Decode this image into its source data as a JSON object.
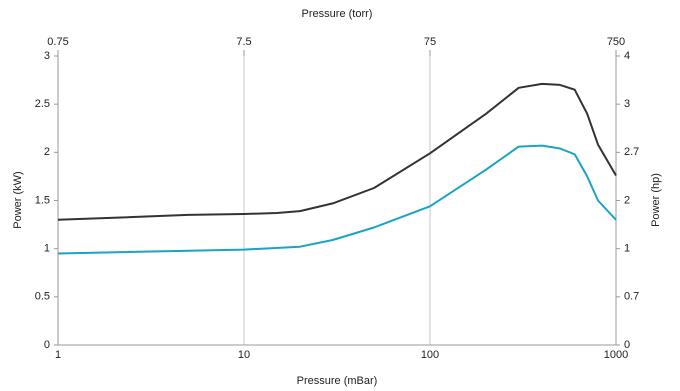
{
  "chart_data": {
    "type": "line",
    "xlabel": "Pressure (mBar)",
    "x2label": "Pressure (torr)",
    "ylabel": "Power (kW)",
    "y2label": "Power (hp)",
    "xscale": "log",
    "xlim": [
      1,
      1000
    ],
    "xticks": [
      1,
      10,
      100,
      1000
    ],
    "x2scale": "log",
    "x2lim": [
      0.75,
      750
    ],
    "x2ticks": [
      0.75,
      7.5,
      75,
      750
    ],
    "ylim": [
      0,
      3
    ],
    "yticks": [
      0,
      0.5,
      1,
      1.5,
      2,
      2.5,
      3
    ],
    "y2lim": [
      0,
      4.02
    ],
    "y2ticks": [
      0,
      {
        "value": 0.67,
        "label": "0.7"
      },
      {
        "value": 1.34,
        "label": "1"
      },
      {
        "value": 2.01,
        "label": "2"
      },
      {
        "value": 2.68,
        "label": "2.7"
      },
      {
        "value": 3.35,
        "label": "3"
      },
      {
        "value": 4.02,
        "label": "4"
      }
    ],
    "grid": "x",
    "series": [
      {
        "color": "#333333",
        "x": [
          1,
          2,
          5,
          10,
          15,
          20,
          30,
          50,
          100,
          200,
          300,
          400,
          500,
          600,
          700,
          800,
          1000
        ],
        "values": [
          1.3,
          1.32,
          1.35,
          1.36,
          1.37,
          1.39,
          1.47,
          1.63,
          1.99,
          2.4,
          2.67,
          2.71,
          2.7,
          2.65,
          2.4,
          2.08,
          1.76
        ]
      },
      {
        "color": "#1aa3c4",
        "x": [
          1,
          10,
          20,
          30,
          50,
          100,
          200,
          300,
          400,
          500,
          600,
          700,
          800,
          1000
        ],
        "values": [
          0.95,
          0.99,
          1.02,
          1.09,
          1.22,
          1.44,
          1.82,
          2.06,
          2.07,
          2.04,
          1.98,
          1.75,
          1.5,
          1.3
        ]
      }
    ]
  }
}
